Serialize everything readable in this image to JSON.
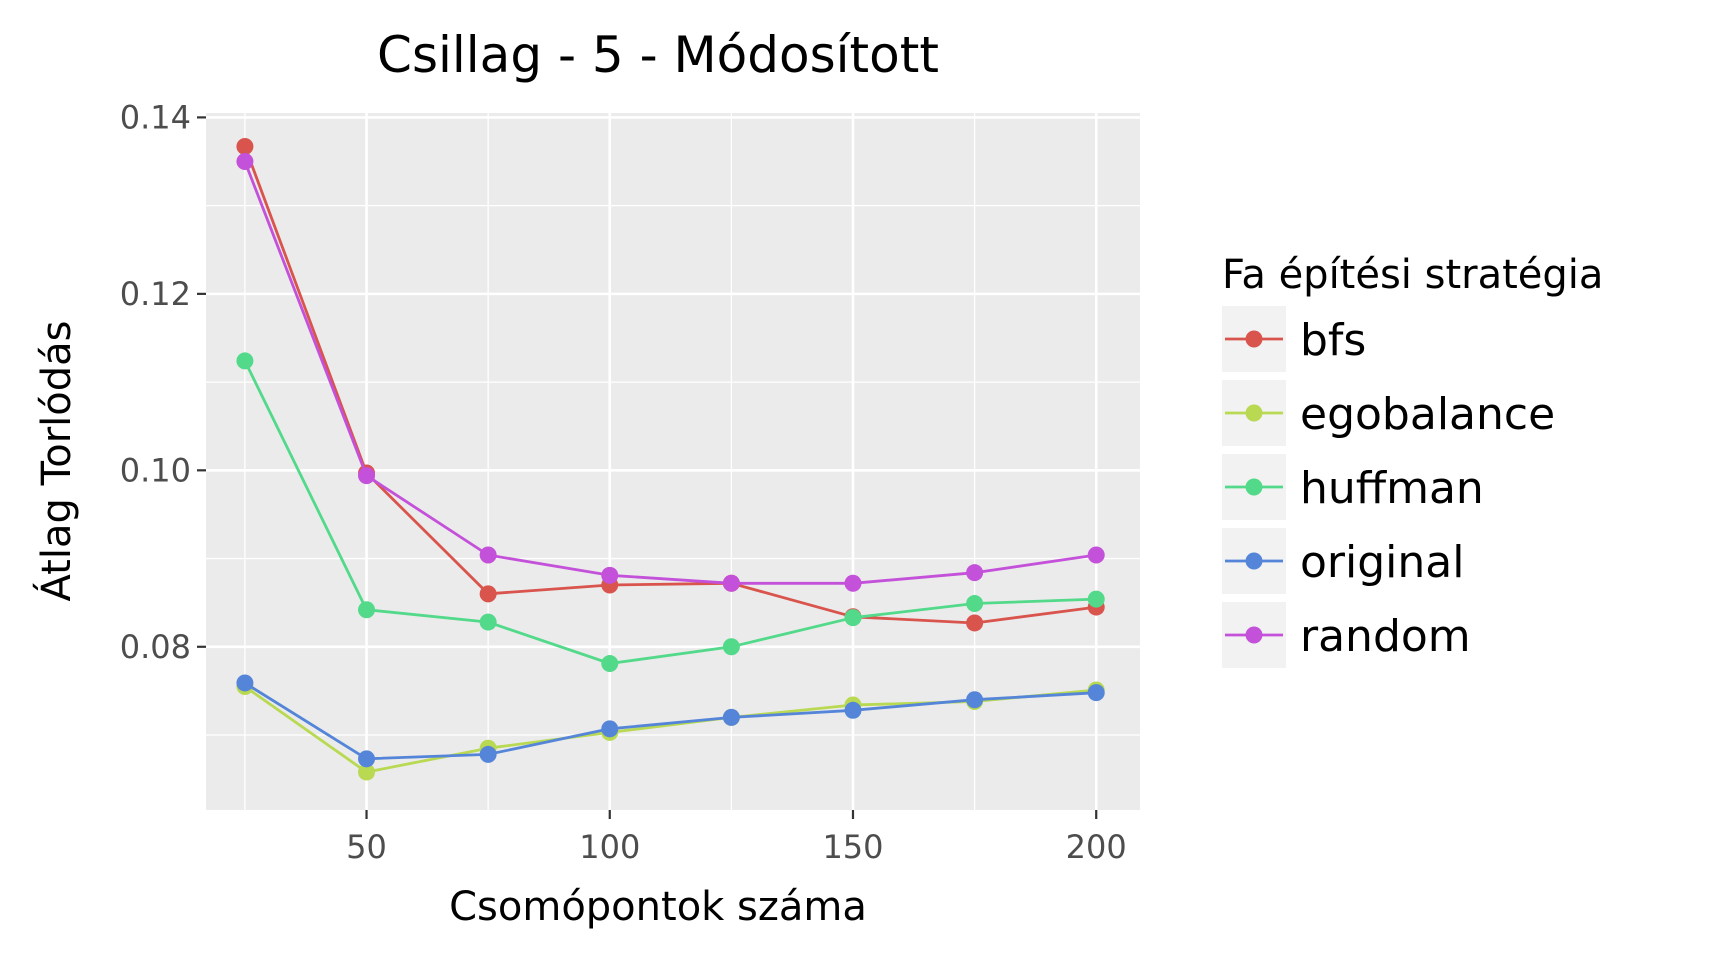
{
  "chart_data": {
    "type": "line",
    "title": "Csillag - 5 - Módosított",
    "xlabel": "Csomópontok száma",
    "ylabel": "Átlag Torlódás",
    "x": [
      25,
      50,
      75,
      100,
      125,
      150,
      175,
      200
    ],
    "xlim": [
      17,
      209
    ],
    "ylim": [
      0.0615,
      0.1405
    ],
    "xticks": [
      50,
      100,
      150,
      200
    ],
    "xtick_labels": [
      "50",
      "100",
      "150",
      "200"
    ],
    "yticks": [
      0.08,
      0.1,
      0.12,
      0.14
    ],
    "ytick_labels": [
      "0.08",
      "0.10",
      "0.12",
      "0.14"
    ],
    "grid": true,
    "legend": {
      "title": "Fa építési stratégia",
      "position": "right"
    },
    "series": [
      {
        "name": "bfs",
        "color": "#d9544d",
        "values": [
          0.1367,
          0.0997,
          0.086,
          0.087,
          0.0872,
          0.0834,
          0.0827,
          0.0845
        ]
      },
      {
        "name": "egobalance",
        "color": "#b8d951",
        "values": [
          0.0755,
          0.0658,
          0.0685,
          0.0703,
          0.072,
          0.0734,
          0.0738,
          0.0751
        ]
      },
      {
        "name": "huffman",
        "color": "#52d98a",
        "values": [
          0.1124,
          0.0842,
          0.0828,
          0.0781,
          0.08,
          0.0833,
          0.0849,
          0.0854
        ]
      },
      {
        "name": "original",
        "color": "#5585d9",
        "values": [
          0.0759,
          0.0673,
          0.0678,
          0.0707,
          0.072,
          0.0728,
          0.074,
          0.0748
        ]
      },
      {
        "name": "random",
        "color": "#c451d9",
        "values": [
          0.135,
          0.0994,
          0.0904,
          0.0881,
          0.0872,
          0.0872,
          0.0884,
          0.0904
        ]
      }
    ]
  }
}
